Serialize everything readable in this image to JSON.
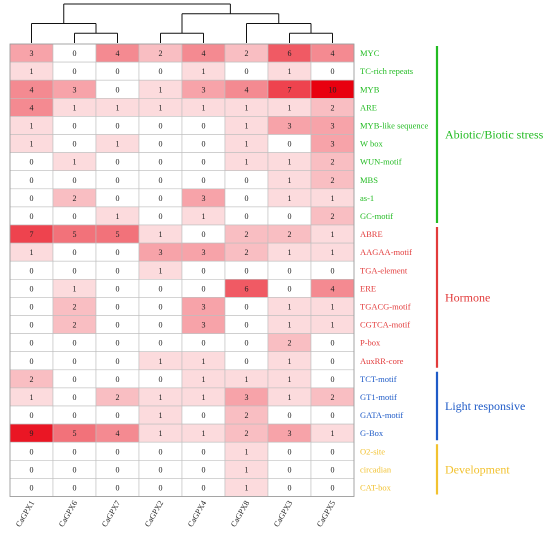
{
  "chart_data": {
    "type": "heatmap",
    "columns": [
      "CaGPX1",
      "CaGPX6",
      "CaGPX7",
      "CaGPX2",
      "CaGPX4",
      "CaGPX8",
      "CaGPX3",
      "CaGPX5"
    ],
    "rows": [
      {
        "name": "MYC",
        "group": "stress",
        "values": [
          3,
          0,
          4,
          2,
          4,
          2,
          6,
          4
        ]
      },
      {
        "name": "TC-rich repeats",
        "group": "stress",
        "values": [
          1,
          0,
          0,
          0,
          1,
          0,
          1,
          0
        ]
      },
      {
        "name": "MYB",
        "group": "stress",
        "values": [
          4,
          3,
          0,
          1,
          3,
          4,
          7,
          10
        ]
      },
      {
        "name": "ARE",
        "group": "stress",
        "values": [
          4,
          1,
          1,
          1,
          1,
          1,
          1,
          2
        ]
      },
      {
        "name": "MYB-like sequence",
        "group": "stress",
        "values": [
          1,
          0,
          0,
          0,
          0,
          1,
          3,
          3
        ]
      },
      {
        "name": "W box",
        "group": "stress",
        "values": [
          1,
          0,
          1,
          0,
          0,
          1,
          0,
          3
        ]
      },
      {
        "name": "WUN-motif",
        "group": "stress",
        "values": [
          0,
          1,
          0,
          0,
          0,
          1,
          1,
          2
        ]
      },
      {
        "name": "MBS",
        "group": "stress",
        "values": [
          0,
          0,
          0,
          0,
          0,
          0,
          1,
          2
        ]
      },
      {
        "name": "as-1",
        "group": "stress",
        "values": [
          0,
          2,
          0,
          0,
          3,
          0,
          1,
          1
        ]
      },
      {
        "name": "GC-motif",
        "group": "stress",
        "values": [
          0,
          0,
          1,
          0,
          1,
          0,
          0,
          2
        ]
      },
      {
        "name": "ABRE",
        "group": "hormone",
        "values": [
          7,
          5,
          5,
          1,
          0,
          2,
          2,
          1
        ]
      },
      {
        "name": "AAGAA-motif",
        "group": "hormone",
        "values": [
          1,
          0,
          0,
          3,
          3,
          2,
          1,
          1
        ]
      },
      {
        "name": "TGA-element",
        "group": "hormone",
        "values": [
          0,
          0,
          0,
          1,
          0,
          0,
          0,
          0
        ]
      },
      {
        "name": "ERE",
        "group": "hormone",
        "values": [
          0,
          1,
          0,
          0,
          0,
          6,
          0,
          4
        ]
      },
      {
        "name": "TGACG-motif",
        "group": "hormone",
        "values": [
          0,
          2,
          0,
          0,
          3,
          0,
          1,
          1
        ]
      },
      {
        "name": "CGTCA-motif",
        "group": "hormone",
        "values": [
          0,
          2,
          0,
          0,
          3,
          0,
          1,
          1
        ]
      },
      {
        "name": "P-box",
        "group": "hormone",
        "values": [
          0,
          0,
          0,
          0,
          0,
          0,
          2,
          0
        ]
      },
      {
        "name": "AuxRR-core",
        "group": "hormone",
        "values": [
          0,
          0,
          0,
          1,
          1,
          0,
          1,
          0
        ]
      },
      {
        "name": "TCT-motif",
        "group": "light",
        "values": [
          2,
          0,
          0,
          0,
          1,
          1,
          1,
          0
        ]
      },
      {
        "name": "GT1-motif",
        "group": "light",
        "values": [
          1,
          0,
          2,
          1,
          1,
          3,
          1,
          2
        ]
      },
      {
        "name": "GATA-motif",
        "group": "light",
        "values": [
          0,
          0,
          0,
          1,
          0,
          2,
          0,
          0
        ]
      },
      {
        "name": "G-Box",
        "group": "light",
        "values": [
          9,
          5,
          4,
          1,
          1,
          2,
          3,
          1
        ]
      },
      {
        "name": "O2-site",
        "group": "development",
        "values": [
          0,
          0,
          0,
          0,
          0,
          1,
          0,
          0
        ]
      },
      {
        "name": "circadian",
        "group": "development",
        "values": [
          0,
          0,
          0,
          0,
          0,
          1,
          0,
          0
        ]
      },
      {
        "name": "CAT-box",
        "group": "development",
        "values": [
          0,
          0,
          0,
          0,
          0,
          1,
          0,
          0
        ]
      }
    ],
    "groups": [
      {
        "id": "stress",
        "label": "Abiotic/Biotic stress",
        "color": "#22bb22"
      },
      {
        "id": "hormone",
        "label": "Hormone",
        "color": "#e23b3b"
      },
      {
        "id": "light",
        "label": "Light responsive",
        "color": "#1f5bc7"
      },
      {
        "id": "development",
        "label": "Development",
        "color": "#f2c230"
      }
    ],
    "color_scale": {
      "min": 0,
      "max": 10,
      "low": "#ffffff",
      "high": "#e8000f"
    },
    "dendrogram": "((CaGPX1,(CaGPX6,CaGPX7)),((CaGPX2,CaGPX4),(CaGPX8,(CaGPX3,CaGPX5))))"
  }
}
